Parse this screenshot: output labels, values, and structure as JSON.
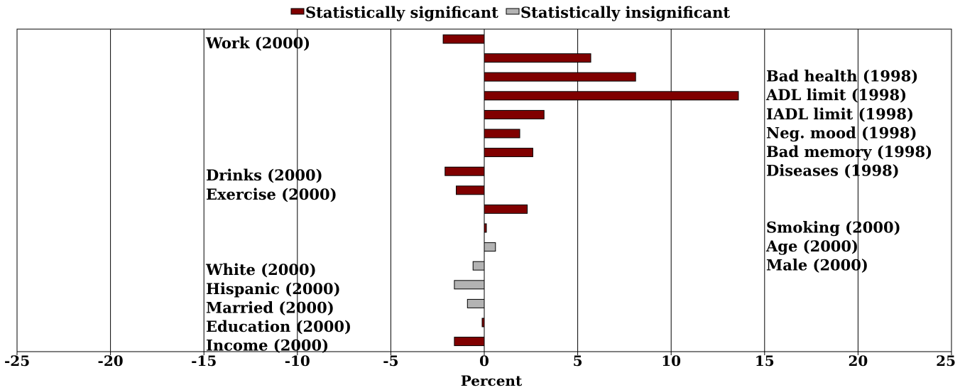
{
  "chart_data": {
    "type": "bar",
    "orientation": "horizontal",
    "xlabel": "Percent",
    "xlim": [
      -25,
      25
    ],
    "xticks": [
      -25,
      -20,
      -15,
      -10,
      -5,
      0,
      5,
      10,
      15,
      20,
      25
    ],
    "grid": true,
    "legend": {
      "placement": "top-center",
      "entries": [
        {
          "label": "Statistically significant",
          "color": "#800000"
        },
        {
          "label": "Statistically insignificant",
          "color": "#b3b3b3"
        }
      ]
    },
    "categories": [
      {
        "label": "Work (2000)",
        "value": -2.2,
        "significant": true,
        "label_side": "left"
      },
      {
        "label": "Bad health (1998)",
        "value": 5.7,
        "significant": true,
        "label_side": "right"
      },
      {
        "label": "ADL limit (1998)",
        "value": 8.1,
        "significant": true,
        "label_side": "right"
      },
      {
        "label": "IADL limit (1998)",
        "value": 13.6,
        "significant": true,
        "label_side": "right"
      },
      {
        "label": "Neg. mood (1998)",
        "value": 3.2,
        "significant": true,
        "label_side": "right"
      },
      {
        "label": "Bad memory (1998)",
        "value": 1.9,
        "significant": true,
        "label_side": "right"
      },
      {
        "label": "Diseases (1998)",
        "value": 2.6,
        "significant": true,
        "label_side": "right"
      },
      {
        "label": "Drinks (2000)",
        "value": -2.1,
        "significant": true,
        "label_side": "left"
      },
      {
        "label": "Exercise (2000)",
        "value": -1.5,
        "significant": true,
        "label_side": "left"
      },
      {
        "label": "Smoking (2000)",
        "value": 2.3,
        "significant": true,
        "label_side": "right"
      },
      {
        "label": "Age (2000)",
        "value": 0.1,
        "significant": true,
        "label_side": "right"
      },
      {
        "label": "Male (2000)",
        "value": 0.6,
        "significant": false,
        "label_side": "right"
      },
      {
        "label": "White (2000)",
        "value": -0.6,
        "significant": false,
        "label_side": "left"
      },
      {
        "label": "Hispanic (2000)",
        "value": -1.6,
        "significant": false,
        "label_side": "left"
      },
      {
        "label": "Married (2000)",
        "value": -0.9,
        "significant": false,
        "label_side": "left"
      },
      {
        "label": "Education (2000)",
        "value": -0.1,
        "significant": true,
        "label_side": "left"
      },
      {
        "label": "Income (2000)",
        "value": -1.6,
        "significant": true,
        "label_side": "left"
      }
    ]
  }
}
